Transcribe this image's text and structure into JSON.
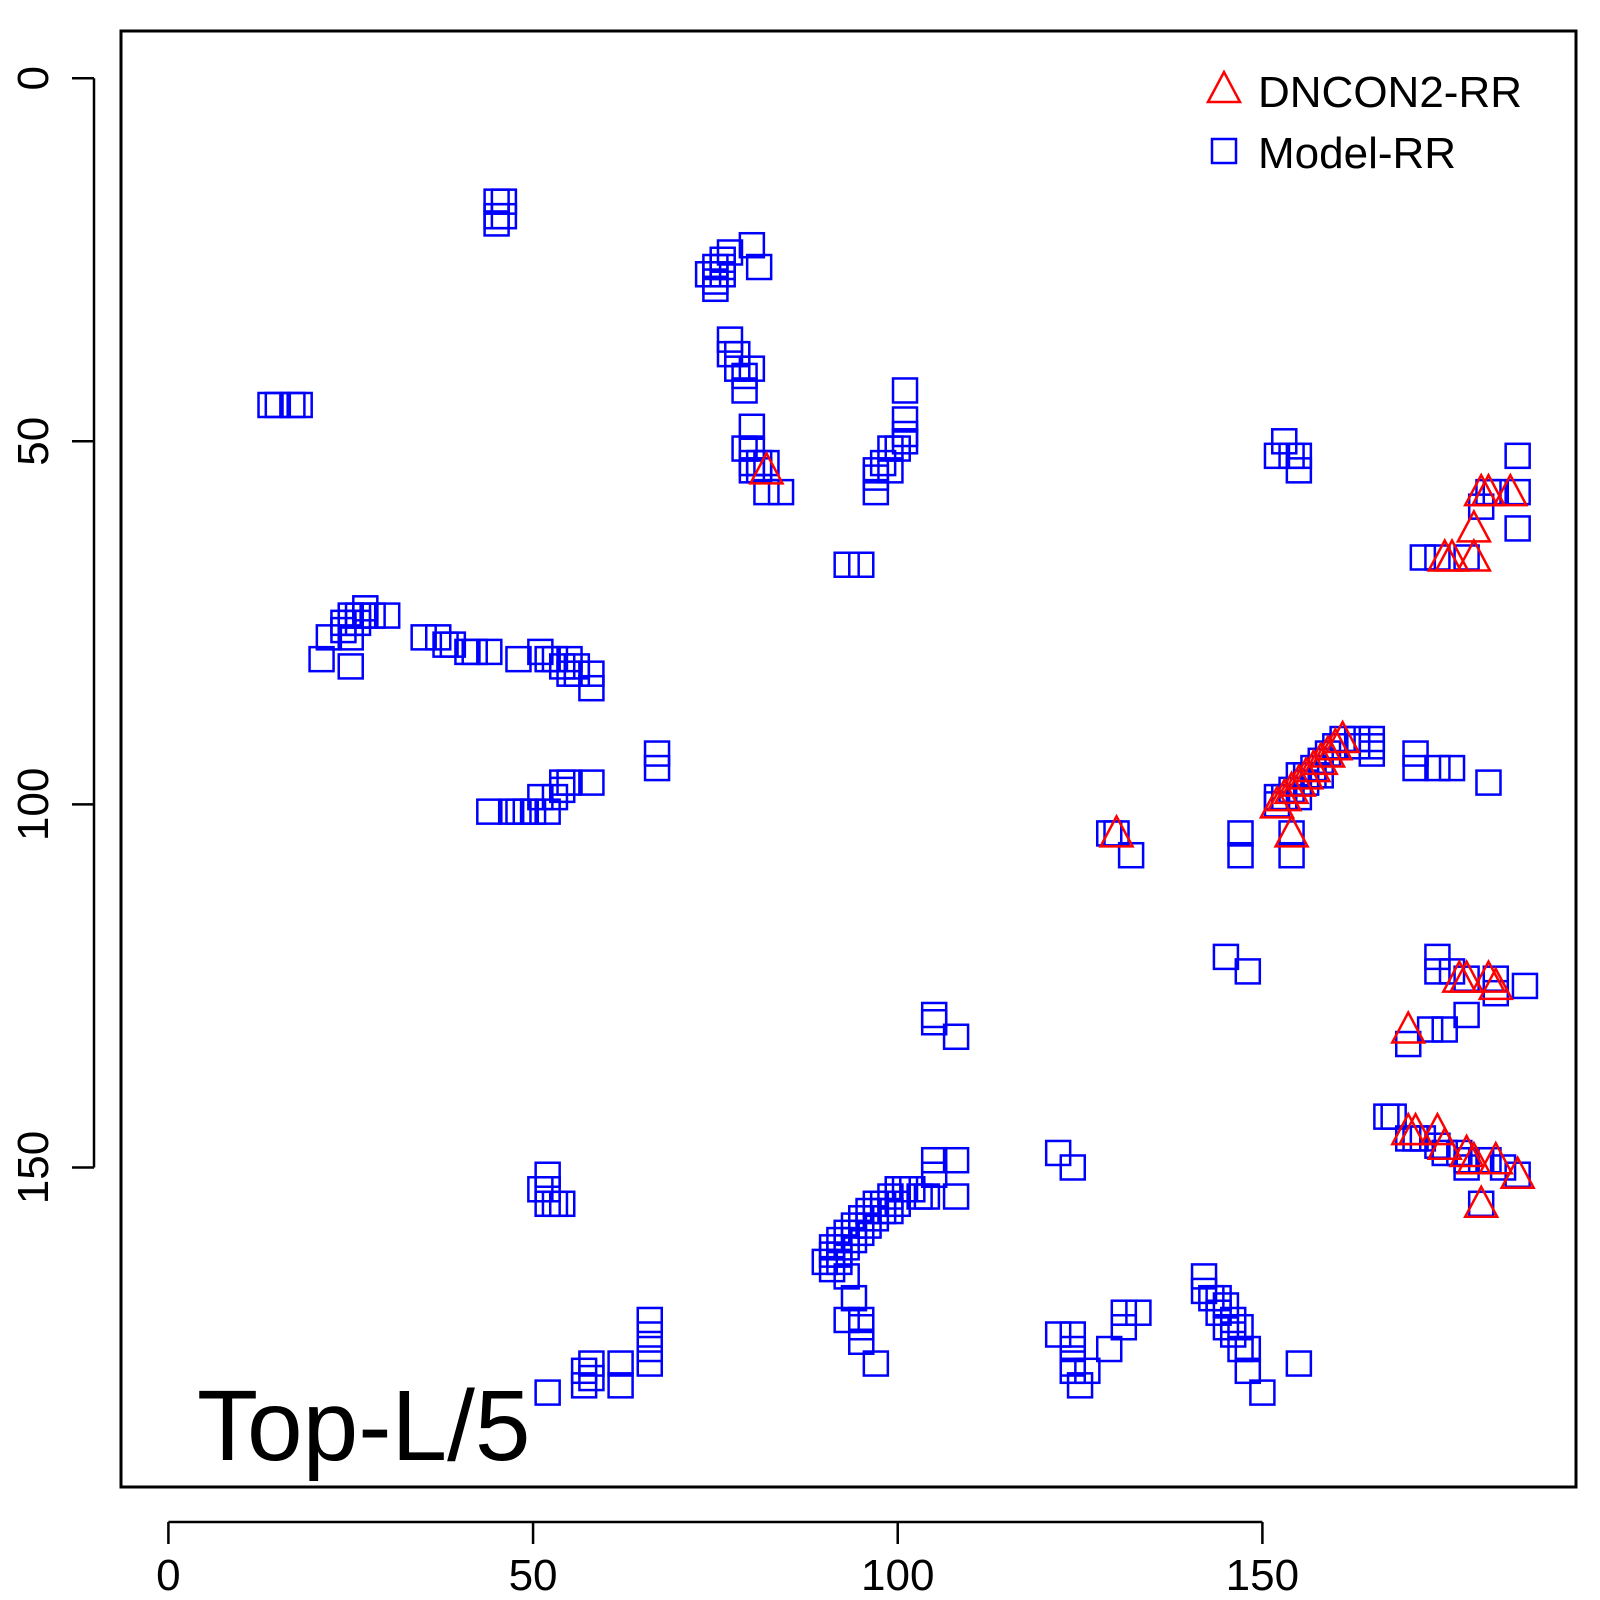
{
  "chart_data": {
    "type": "scatter",
    "title": "",
    "xlabel": "",
    "ylabel": "",
    "xlim": [
      -6.5,
      193
    ],
    "ylim": [
      194,
      -6.5
    ],
    "y_reversed": true,
    "x_ticks": [
      0,
      50,
      100,
      150
    ],
    "y_ticks": [
      0,
      50,
      100,
      150
    ],
    "grid": false,
    "legend_position": "top-right",
    "annotation": "Top-L/5",
    "series": [
      {
        "name": "DNCON2-RR",
        "marker": "triangle",
        "color": "#ff0000",
        "points": [
          [
            82,
            54
          ],
          [
            130,
            104
          ],
          [
            152,
            100
          ],
          [
            153,
            99
          ],
          [
            154,
            98
          ],
          [
            155,
            97
          ],
          [
            156,
            96
          ],
          [
            157,
            95
          ],
          [
            158,
            94
          ],
          [
            159,
            93
          ],
          [
            160,
            92
          ],
          [
            161,
            91
          ],
          [
            154,
            104
          ],
          [
            175,
            66
          ],
          [
            176,
            66
          ],
          [
            179,
            62
          ],
          [
            179,
            66
          ],
          [
            180,
            57
          ],
          [
            181,
            57
          ],
          [
            184,
            57
          ],
          [
            177,
            124
          ],
          [
            178,
            124
          ],
          [
            181,
            124
          ],
          [
            182,
            125
          ],
          [
            170,
            131
          ],
          [
            170,
            145
          ],
          [
            171,
            145
          ],
          [
            174,
            145
          ],
          [
            175,
            147
          ],
          [
            178,
            148
          ],
          [
            179,
            149
          ],
          [
            182,
            149
          ],
          [
            185,
            151
          ],
          [
            180,
            155
          ]
        ]
      },
      {
        "name": "Model-RR",
        "marker": "square",
        "color": "#0000ff",
        "points": [
          [
            45,
            17
          ],
          [
            46,
            17
          ],
          [
            45,
            19
          ],
          [
            46,
            19
          ],
          [
            45,
            20
          ],
          [
            74,
            27
          ],
          [
            75,
            26
          ],
          [
            75,
            27
          ],
          [
            75,
            28
          ],
          [
            75,
            29
          ],
          [
            76,
            25
          ],
          [
            76,
            26
          ],
          [
            76,
            27
          ],
          [
            77,
            24
          ],
          [
            80,
            23
          ],
          [
            81,
            26
          ],
          [
            77,
            36
          ],
          [
            77,
            38
          ],
          [
            78,
            38
          ],
          [
            78,
            40
          ],
          [
            79,
            41
          ],
          [
            79,
            43
          ],
          [
            80,
            40
          ],
          [
            80,
            48
          ],
          [
            79,
            51
          ],
          [
            80,
            51
          ],
          [
            80,
            53
          ],
          [
            81,
            53
          ],
          [
            80,
            54
          ],
          [
            81,
            54
          ],
          [
            82,
            53
          ],
          [
            82,
            57
          ],
          [
            84,
            57
          ],
          [
            14,
            45
          ],
          [
            15,
            45
          ],
          [
            17,
            45
          ],
          [
            18,
            45
          ],
          [
            101,
            43
          ],
          [
            101,
            47
          ],
          [
            101,
            49
          ],
          [
            101,
            50
          ],
          [
            100,
            51
          ],
          [
            99,
            51
          ],
          [
            98,
            53
          ],
          [
            99,
            54
          ],
          [
            97,
            54
          ],
          [
            97,
            55
          ],
          [
            97,
            57
          ],
          [
            93,
            67
          ],
          [
            95,
            67
          ],
          [
            153,
            50
          ],
          [
            152,
            52
          ],
          [
            154,
            52
          ],
          [
            155,
            52
          ],
          [
            155,
            54
          ],
          [
            185,
            52
          ],
          [
            181,
            57
          ],
          [
            182,
            57
          ],
          [
            185,
            57
          ],
          [
            180,
            59
          ],
          [
            185,
            62
          ],
          [
            172,
            66
          ],
          [
            174,
            66
          ],
          [
            178,
            66
          ],
          [
            21,
            80
          ],
          [
            22,
            77
          ],
          [
            24,
            75
          ],
          [
            24,
            76
          ],
          [
            25,
            74
          ],
          [
            25,
            75
          ],
          [
            25,
            77
          ],
          [
            25,
            81
          ],
          [
            26,
            74
          ],
          [
            26,
            75
          ],
          [
            27,
            73
          ],
          [
            27,
            74
          ],
          [
            28,
            74
          ],
          [
            30,
            74
          ],
          [
            35,
            77
          ],
          [
            37,
            77
          ],
          [
            38,
            78
          ],
          [
            39,
            78
          ],
          [
            41,
            79
          ],
          [
            42,
            79
          ],
          [
            44,
            79
          ],
          [
            48,
            80
          ],
          [
            51,
            79
          ],
          [
            52,
            80
          ],
          [
            53,
            80
          ],
          [
            54,
            81
          ],
          [
            55,
            80
          ],
          [
            55,
            82
          ],
          [
            56,
            81
          ],
          [
            56,
            82
          ],
          [
            58,
            82
          ],
          [
            58,
            84
          ],
          [
            67,
            93
          ],
          [
            67,
            95
          ],
          [
            58,
            97
          ],
          [
            55,
            97
          ],
          [
            54,
            97
          ],
          [
            54,
            98
          ],
          [
            53,
            99
          ],
          [
            51,
            99
          ],
          [
            50,
            101
          ],
          [
            49,
            101
          ],
          [
            48,
            101
          ],
          [
            47,
            101
          ],
          [
            44,
            101
          ],
          [
            52,
            101
          ],
          [
            165,
            91
          ],
          [
            163,
            91
          ],
          [
            163,
            92
          ],
          [
            165,
            93
          ],
          [
            171,
            93
          ],
          [
            171,
            95
          ],
          [
            174,
            95
          ],
          [
            176,
            95
          ],
          [
            181,
            97
          ],
          [
            165,
            92
          ],
          [
            152,
            99
          ],
          [
            152,
            100
          ],
          [
            153,
            99
          ],
          [
            154,
            98
          ],
          [
            155,
            96
          ],
          [
            156,
            96
          ],
          [
            157,
            95
          ],
          [
            158,
            94
          ],
          [
            159,
            93
          ],
          [
            160,
            92
          ],
          [
            161,
            91
          ],
          [
            157,
            96
          ],
          [
            158,
            96
          ],
          [
            156,
            97
          ],
          [
            155,
            99
          ],
          [
            129,
            104
          ],
          [
            130,
            104
          ],
          [
            132,
            107
          ],
          [
            147,
            104
          ],
          [
            147,
            107
          ],
          [
            154,
            104
          ],
          [
            154,
            107
          ],
          [
            145,
            121
          ],
          [
            148,
            123
          ],
          [
            174,
            121
          ],
          [
            174,
            123
          ],
          [
            176,
            123
          ],
          [
            178,
            124
          ],
          [
            182,
            124
          ],
          [
            182,
            126
          ],
          [
            186,
            125
          ],
          [
            105,
            129
          ],
          [
            105,
            130
          ],
          [
            108,
            132
          ],
          [
            170,
            133
          ],
          [
            173,
            131
          ],
          [
            175,
            131
          ],
          [
            178,
            129
          ],
          [
            167,
            143
          ],
          [
            168,
            143
          ],
          [
            170,
            146
          ],
          [
            171,
            146
          ],
          [
            172,
            146
          ],
          [
            174,
            147
          ],
          [
            175,
            148
          ],
          [
            177,
            148
          ],
          [
            178,
            149
          ],
          [
            178,
            150
          ],
          [
            180,
            149
          ],
          [
            181,
            149
          ],
          [
            183,
            150
          ],
          [
            185,
            151
          ],
          [
            180,
            155
          ],
          [
            122,
            148
          ],
          [
            124,
            150
          ],
          [
            105,
            149
          ],
          [
            105,
            151
          ],
          [
            108,
            149
          ],
          [
            108,
            154
          ],
          [
            51,
            153
          ],
          [
            52,
            151
          ],
          [
            52,
            153
          ],
          [
            53,
            155
          ],
          [
            52,
            155
          ],
          [
            54,
            155
          ],
          [
            102,
            153
          ],
          [
            101,
            153
          ],
          [
            100,
            153
          ],
          [
            99,
            154
          ],
          [
            98,
            155
          ],
          [
            97,
            155
          ],
          [
            96,
            156
          ],
          [
            95,
            157
          ],
          [
            94,
            158
          ],
          [
            93,
            159
          ],
          [
            92,
            160
          ],
          [
            91,
            161
          ],
          [
            91,
            162
          ],
          [
            90,
            163
          ],
          [
            91,
            164
          ],
          [
            103,
            154
          ],
          [
            104,
            154
          ],
          [
            100,
            155
          ],
          [
            99,
            156
          ],
          [
            98,
            156
          ],
          [
            97,
            157
          ],
          [
            96,
            158
          ],
          [
            95,
            159
          ],
          [
            94,
            160
          ],
          [
            93,
            161
          ],
          [
            92,
            162
          ],
          [
            92,
            163
          ],
          [
            93,
            165
          ],
          [
            94,
            168
          ],
          [
            93,
            171
          ],
          [
            95,
            171
          ],
          [
            95,
            172
          ],
          [
            95,
            174
          ],
          [
            97,
            177
          ],
          [
            142,
            165
          ],
          [
            142,
            167
          ],
          [
            143,
            168
          ],
          [
            144,
            168
          ],
          [
            145,
            169
          ],
          [
            144,
            170
          ],
          [
            146,
            171
          ],
          [
            145,
            172
          ],
          [
            147,
            172
          ],
          [
            146,
            173
          ],
          [
            147,
            175
          ],
          [
            148,
            175
          ],
          [
            148,
            178
          ],
          [
            150,
            181
          ],
          [
            122,
            173
          ],
          [
            124,
            173
          ],
          [
            124,
            175
          ],
          [
            124,
            177
          ],
          [
            124,
            178
          ],
          [
            126,
            178
          ],
          [
            125,
            180
          ],
          [
            129,
            175
          ],
          [
            131,
            170
          ],
          [
            131,
            172
          ],
          [
            133,
            170
          ],
          [
            155,
            177
          ],
          [
            66,
            171
          ],
          [
            66,
            173
          ],
          [
            66,
            175
          ],
          [
            66,
            177
          ],
          [
            62,
            177
          ],
          [
            58,
            177
          ],
          [
            57,
            178
          ],
          [
            58,
            179
          ],
          [
            57,
            180
          ],
          [
            62,
            180
          ],
          [
            52,
            181
          ]
        ]
      }
    ]
  }
}
